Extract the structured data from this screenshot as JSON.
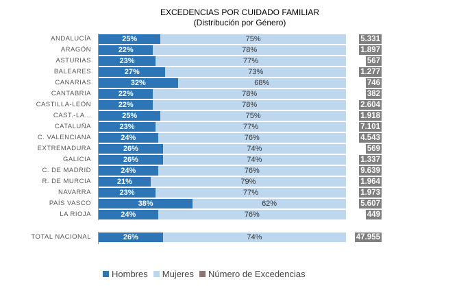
{
  "chart_data": {
    "type": "bar",
    "title": "EXCEDENCIAS POR CUIDADO FAMILIAR",
    "subtitle": "(Distribución por Género)",
    "categories": [
      "ANDALUCÍA",
      "ARAGÓN",
      "ASTURIAS",
      "BALEARES",
      "CANARIAS",
      "CANTABRIA",
      "CASTILLA-LEÓN",
      "CAST.-LA...",
      "CATALUÑA",
      "C. VALENCIANA",
      "EXTREMADURA",
      "GALICIA",
      "C. DE MADRID",
      "R. DE MURCIA",
      "NAVARRA",
      "PAÍS VASCO",
      "LA RIOJA"
    ],
    "series": [
      {
        "name": "Hombres",
        "color": "#2e75b6",
        "values": [
          25,
          22,
          23,
          27,
          32,
          22,
          22,
          25,
          23,
          24,
          26,
          26,
          24,
          21,
          23,
          38,
          24
        ]
      },
      {
        "name": "Mujeres",
        "color": "#bdd7ee",
        "values": [
          75,
          78,
          77,
          73,
          68,
          78,
          78,
          75,
          77,
          76,
          74,
          74,
          76,
          79,
          77,
          62,
          76
        ]
      },
      {
        "name": "Número de Excedencias",
        "color": "#7f7f7f",
        "values": [
          "5.331",
          "1.897",
          "567",
          "1.277",
          "746",
          "382",
          "2.604",
          "1.918",
          "7.101",
          "4.543",
          "569",
          "1.337",
          "9.639",
          "1.964",
          "1.973",
          "5.607",
          "449"
        ]
      }
    ],
    "total": {
      "label": "TOTAL NACIONAL",
      "hombres": 26,
      "mujeres": 74,
      "numero": "47.955"
    },
    "unit": "%",
    "legend_position": "bottom"
  }
}
